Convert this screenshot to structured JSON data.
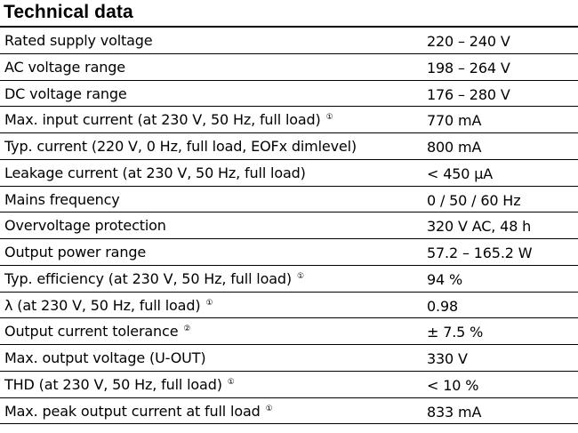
{
  "title": "Technical data",
  "rows": [
    {
      "label": "Rated supply voltage",
      "note": "",
      "value": "220 – 240 V"
    },
    {
      "label": "AC voltage range",
      "note": "",
      "value": "198 – 264 V"
    },
    {
      "label": "DC voltage range",
      "note": "",
      "value": "176 – 280 V"
    },
    {
      "label": "Max. input current (at 230 V, 50 Hz, full load)",
      "note": "①",
      "value": "770 mA"
    },
    {
      "label": "Typ. current (220 V, 0 Hz, full load, EOFx dimlevel)",
      "note": "",
      "value": "800 mA"
    },
    {
      "label": "Leakage current (at 230 V, 50 Hz, full load)",
      "note": "",
      "value": "< 450 µA"
    },
    {
      "label": "Mains frequency",
      "note": "",
      "value": "0 / 50 / 60 Hz"
    },
    {
      "label": "Overvoltage protection",
      "note": "",
      "value": "320 V AC, 48 h"
    },
    {
      "label": "Output power range",
      "note": "",
      "value": "57.2 – 165.2 W"
    },
    {
      "label": "Typ. efficiency (at 230 V, 50 Hz, full load)",
      "note": "①",
      "value": "94 %"
    },
    {
      "label": "λ (at 230 V, 50 Hz, full load)",
      "note": "①",
      "value": "0.98"
    },
    {
      "label": "Output current tolerance",
      "note": "②",
      "value": "± 7.5 %"
    },
    {
      "label": "Max. output voltage (U-OUT)",
      "note": "",
      "value": "330 V"
    },
    {
      "label": "THD (at 230 V, 50 Hz, full load)",
      "note": "①",
      "value": "< 10 %"
    },
    {
      "label": "Max. peak output current at full load",
      "note": "①",
      "value": "833 mA"
    }
  ]
}
